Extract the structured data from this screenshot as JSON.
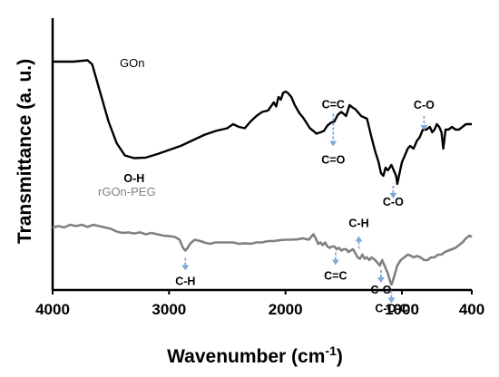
{
  "chart_data": {
    "type": "line",
    "xlabel_main": "Wavenumber (cm",
    "xlabel_sup": "-1",
    "xlabel_close": ")",
    "ylabel": "Transmittance (a. u.)",
    "xlim": [
      4000,
      400
    ],
    "x_ticks": [
      "4000",
      "3000",
      "2000",
      "1000",
      "400"
    ],
    "x_tick_values": [
      4000,
      3000,
      2000,
      1000,
      400
    ],
    "grid": false,
    "series": [
      {
        "name": "GOn",
        "color": "#000000",
        "points": [
          [
            4000,
            84
          ],
          [
            3820,
            84
          ],
          [
            3700,
            84.5
          ],
          [
            3660,
            83
          ],
          [
            3600,
            74
          ],
          [
            3520,
            62
          ],
          [
            3450,
            54
          ],
          [
            3380,
            49.5
          ],
          [
            3300,
            48.5
          ],
          [
            3200,
            48.7
          ],
          [
            3100,
            50
          ],
          [
            3000,
            51.5
          ],
          [
            2900,
            53
          ],
          [
            2800,
            55
          ],
          [
            2700,
            57
          ],
          [
            2600,
            58.5
          ],
          [
            2500,
            59.5
          ],
          [
            2450,
            61
          ],
          [
            2400,
            60
          ],
          [
            2350,
            59.5
          ],
          [
            2300,
            62
          ],
          [
            2250,
            64
          ],
          [
            2200,
            65.5
          ],
          [
            2150,
            66
          ],
          [
            2100,
            69
          ],
          [
            2080,
            67.5
          ],
          [
            2060,
            71
          ],
          [
            2040,
            70
          ],
          [
            2020,
            72.5
          ],
          [
            2000,
            73
          ],
          [
            1980,
            72.5
          ],
          [
            1950,
            71
          ],
          [
            1920,
            68
          ],
          [
            1880,
            65
          ],
          [
            1850,
            63.5
          ],
          [
            1820,
            61.5
          ],
          [
            1790,
            59.5
          ],
          [
            1760,
            58.5
          ],
          [
            1735,
            57.5
          ],
          [
            1700,
            58
          ],
          [
            1670,
            58.5
          ],
          [
            1640,
            60.5
          ],
          [
            1610,
            61.5
          ],
          [
            1580,
            62
          ],
          [
            1550,
            64.5
          ],
          [
            1520,
            65.5
          ],
          [
            1480,
            64
          ],
          [
            1450,
            68
          ],
          [
            1420,
            67
          ],
          [
            1400,
            66.5
          ],
          [
            1380,
            65.5
          ],
          [
            1350,
            64
          ],
          [
            1300,
            63
          ],
          [
            1260,
            56
          ],
          [
            1230,
            51
          ],
          [
            1200,
            47
          ],
          [
            1180,
            43
          ],
          [
            1160,
            42
          ],
          [
            1140,
            45
          ],
          [
            1120,
            44
          ],
          [
            1090,
            46
          ],
          [
            1070,
            44
          ],
          [
            1050,
            42
          ],
          [
            1040,
            39
          ],
          [
            1020,
            43
          ],
          [
            1000,
            47
          ],
          [
            970,
            50
          ],
          [
            950,
            52
          ],
          [
            930,
            53
          ],
          [
            900,
            52
          ],
          [
            870,
            55
          ],
          [
            850,
            56
          ],
          [
            820,
            59
          ],
          [
            790,
            59
          ],
          [
            760,
            60
          ],
          [
            740,
            58
          ],
          [
            720,
            59
          ],
          [
            700,
            61
          ],
          [
            680,
            60
          ],
          [
            660,
            58
          ],
          [
            645,
            52
          ],
          [
            625,
            59
          ],
          [
            600,
            59
          ],
          [
            570,
            60
          ],
          [
            540,
            59
          ],
          [
            510,
            59
          ],
          [
            480,
            60
          ],
          [
            450,
            61
          ],
          [
            400,
            61
          ]
        ]
      },
      {
        "name": "rGOn-PEG",
        "color": "#808080",
        "points": [
          [
            4000,
            23
          ],
          [
            3950,
            23.5
          ],
          [
            3900,
            23
          ],
          [
            3850,
            24
          ],
          [
            3800,
            23.5
          ],
          [
            3750,
            24
          ],
          [
            3700,
            23.2
          ],
          [
            3650,
            24
          ],
          [
            3600,
            23.5
          ],
          [
            3550,
            23
          ],
          [
            3500,
            22.5
          ],
          [
            3450,
            21.5
          ],
          [
            3400,
            21
          ],
          [
            3350,
            21.2
          ],
          [
            3300,
            20.8
          ],
          [
            3250,
            21.2
          ],
          [
            3200,
            20.5
          ],
          [
            3150,
            21
          ],
          [
            3100,
            20.5
          ],
          [
            3050,
            20
          ],
          [
            3000,
            19.8
          ],
          [
            2950,
            19.5
          ],
          [
            2910,
            18.5
          ],
          [
            2880,
            15.5
          ],
          [
            2860,
            14.5
          ],
          [
            2840,
            15.5
          ],
          [
            2820,
            17
          ],
          [
            2780,
            18.5
          ],
          [
            2730,
            18
          ],
          [
            2700,
            17.5
          ],
          [
            2650,
            17
          ],
          [
            2600,
            17.5
          ],
          [
            2550,
            17.5
          ],
          [
            2500,
            17.5
          ],
          [
            2450,
            17.5
          ],
          [
            2400,
            17
          ],
          [
            2350,
            17.2
          ],
          [
            2300,
            17
          ],
          [
            2250,
            17.5
          ],
          [
            2200,
            17.5
          ],
          [
            2150,
            18
          ],
          [
            2100,
            18
          ],
          [
            2050,
            18.3
          ],
          [
            2000,
            18.5
          ],
          [
            1950,
            18.5
          ],
          [
            1900,
            18.6
          ],
          [
            1850,
            19
          ],
          [
            1800,
            18.5
          ],
          [
            1760,
            20.5
          ],
          [
            1740,
            19
          ],
          [
            1720,
            17
          ],
          [
            1700,
            17.5
          ],
          [
            1680,
            16.5
          ],
          [
            1660,
            17.5
          ],
          [
            1640,
            16
          ],
          [
            1620,
            15.5
          ],
          [
            1600,
            16
          ],
          [
            1580,
            16
          ],
          [
            1560,
            15
          ],
          [
            1540,
            15.5
          ],
          [
            1520,
            14.5
          ],
          [
            1500,
            15
          ],
          [
            1480,
            15
          ],
          [
            1460,
            14
          ],
          [
            1440,
            14.5
          ],
          [
            1420,
            15
          ],
          [
            1400,
            13.5
          ],
          [
            1380,
            12
          ],
          [
            1360,
            11.5
          ],
          [
            1340,
            13
          ],
          [
            1320,
            11.5
          ],
          [
            1300,
            12
          ],
          [
            1280,
            11
          ],
          [
            1260,
            12
          ],
          [
            1230,
            11
          ],
          [
            1210,
            10
          ],
          [
            1190,
            9
          ],
          [
            1170,
            11
          ],
          [
            1150,
            9
          ],
          [
            1120,
            6
          ],
          [
            1100,
            3
          ],
          [
            1090,
            2
          ],
          [
            1080,
            3
          ],
          [
            1060,
            6
          ],
          [
            1040,
            9
          ],
          [
            1010,
            11
          ],
          [
            980,
            12
          ],
          [
            950,
            13
          ],
          [
            920,
            12.5
          ],
          [
            900,
            12
          ],
          [
            870,
            12.5
          ],
          [
            840,
            12
          ],
          [
            810,
            11
          ],
          [
            780,
            11
          ],
          [
            750,
            12
          ],
          [
            720,
            12
          ],
          [
            690,
            13
          ],
          [
            660,
            13
          ],
          [
            630,
            14
          ],
          [
            600,
            14.5
          ],
          [
            570,
            15
          ],
          [
            540,
            15.5
          ],
          [
            510,
            16.5
          ],
          [
            480,
            17.5
          ],
          [
            450,
            19
          ],
          [
            420,
            20
          ],
          [
            400,
            19.5
          ]
        ]
      }
    ],
    "annotations": [
      {
        "text": "C=C",
        "x": 1590,
        "tip_y": 57.5,
        "arrow": "down",
        "pos": "above"
      },
      {
        "text": "C=O",
        "x": 1590,
        "tip_y": 57.5,
        "arrow": "down",
        "pos": "below"
      },
      {
        "text": "C-O",
        "x": 810,
        "tip_y": 58,
        "arrow": "down",
        "pos": "above"
      },
      {
        "text": "C-O",
        "x": 1075,
        "tip_y": 39,
        "arrow": "down",
        "pos": "below"
      },
      {
        "text": "C-H",
        "x": 2860,
        "tip_y": 12.5,
        "arrow": "down",
        "pos": "below"
      },
      {
        "text": "C=C",
        "x": 1570,
        "tip_y": 14.5,
        "arrow": "down",
        "pos": "below"
      },
      {
        "text": "C-H",
        "x": 1370,
        "tip_y": 14.5,
        "arrow": "up",
        "pos": "above"
      },
      {
        "text": "C-O",
        "x": 1180,
        "tip_y": 8,
        "arrow": "down",
        "pos": "below"
      },
      {
        "text": "C-O-C",
        "x": 1090,
        "tip_y": 0.5,
        "arrow": "down",
        "pos": "below"
      },
      {
        "text": "O-H",
        "x": 3300,
        "tip_y": 47,
        "arrow": "none",
        "pos": "below"
      }
    ],
    "arrow_color": "#7fa7d9"
  }
}
